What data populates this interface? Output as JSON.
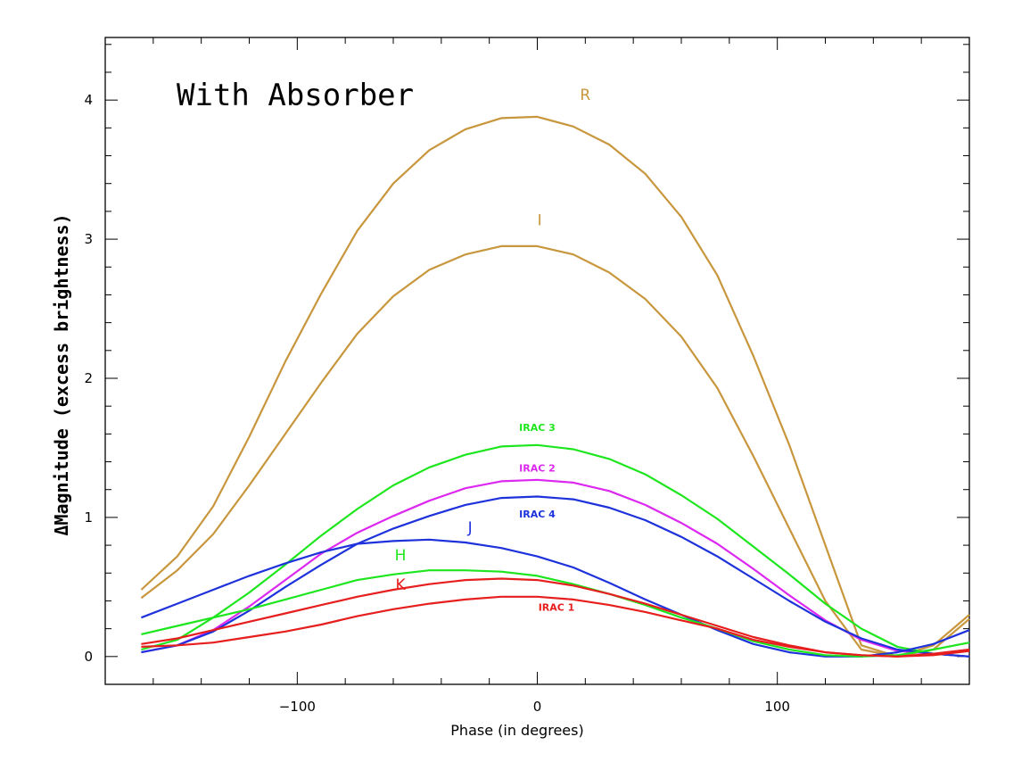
{
  "chart_data": {
    "type": "line",
    "title": "",
    "annotation": "With Absorber",
    "xlabel": "Phase (in degrees)",
    "ylabel": "ΔMagnitude (excess brightness)",
    "xlim": [
      -180,
      180
    ],
    "ylim": [
      -0.2,
      4.45
    ],
    "xticks": [
      -100,
      0,
      100
    ],
    "yticks": [
      0,
      1,
      2,
      3,
      4
    ],
    "grid": false,
    "legend": "none",
    "series": [
      {
        "name": "R",
        "color": "#c8963c",
        "label_at": [
          20,
          4.0
        ],
        "small": false,
        "x": [
          -165,
          -150,
          -135,
          -120,
          -105,
          -90,
          -75,
          -60,
          -45,
          -30,
          -15,
          0,
          15,
          30,
          45,
          60,
          75,
          90,
          105,
          120,
          135,
          150,
          165,
          180
        ],
        "y": [
          0.48,
          0.72,
          1.08,
          1.58,
          2.12,
          2.61,
          3.06,
          3.4,
          3.64,
          3.79,
          3.87,
          3.88,
          3.81,
          3.68,
          3.47,
          3.16,
          2.74,
          2.16,
          1.52,
          0.8,
          0.08,
          0.0,
          0.05,
          0.27
        ]
      },
      {
        "name": "I",
        "color": "#c8963c",
        "label_at": [
          1,
          3.1
        ],
        "small": false,
        "x": [
          -165,
          -150,
          -135,
          -120,
          -105,
          -90,
          -75,
          -60,
          -45,
          -30,
          -15,
          0,
          15,
          30,
          45,
          60,
          75,
          90,
          105,
          120,
          135,
          150,
          165,
          180
        ],
        "y": [
          0.42,
          0.62,
          0.88,
          1.23,
          1.6,
          1.97,
          2.32,
          2.59,
          2.78,
          2.89,
          2.95,
          2.95,
          2.89,
          2.76,
          2.57,
          2.3,
          1.93,
          1.44,
          0.92,
          0.4,
          0.05,
          0.0,
          0.08,
          0.3
        ]
      },
      {
        "name": "IRAC 3",
        "color": "#1ee61e",
        "label_at": [
          0,
          1.62
        ],
        "small": true,
        "x": [
          -165,
          -150,
          -135,
          -120,
          -105,
          -90,
          -75,
          -60,
          -45,
          -30,
          -15,
          0,
          15,
          30,
          45,
          60,
          75,
          90,
          105,
          120,
          135,
          150,
          165,
          180
        ],
        "y": [
          0.05,
          0.12,
          0.28,
          0.46,
          0.66,
          0.87,
          1.06,
          1.23,
          1.36,
          1.45,
          1.51,
          1.52,
          1.49,
          1.42,
          1.31,
          1.16,
          0.99,
          0.79,
          0.59,
          0.38,
          0.2,
          0.07,
          0.02,
          0.0
        ]
      },
      {
        "name": "IRAC 2",
        "color": "#dc28f0",
        "label_at": [
          0,
          1.33
        ],
        "small": true,
        "x": [
          -165,
          -150,
          -135,
          -120,
          -105,
          -90,
          -75,
          -60,
          -45,
          -30,
          -15,
          0,
          15,
          30,
          45,
          60,
          75,
          90,
          105,
          120,
          135,
          150,
          165,
          180
        ],
        "y": [
          0.03,
          0.08,
          0.19,
          0.36,
          0.55,
          0.74,
          0.89,
          1.01,
          1.12,
          1.21,
          1.26,
          1.27,
          1.25,
          1.19,
          1.09,
          0.96,
          0.81,
          0.63,
          0.44,
          0.26,
          0.12,
          0.04,
          0.02,
          0.0
        ]
      },
      {
        "name": "IRAC 4",
        "color": "#1e32dc",
        "label_at": [
          0,
          1.0
        ],
        "small": true,
        "x": [
          -165,
          -150,
          -135,
          -120,
          -105,
          -90,
          -75,
          -60,
          -45,
          -30,
          -15,
          0,
          15,
          30,
          45,
          60,
          75,
          90,
          105,
          120,
          135,
          150,
          165,
          180
        ],
        "y": [
          0.03,
          0.08,
          0.18,
          0.33,
          0.5,
          0.66,
          0.81,
          0.92,
          1.01,
          1.09,
          1.14,
          1.15,
          1.13,
          1.07,
          0.98,
          0.86,
          0.72,
          0.56,
          0.4,
          0.25,
          0.13,
          0.05,
          0.02,
          0.0
        ]
      },
      {
        "name": "J",
        "color": "#1e32dc",
        "label_at": [
          -28,
          0.89
        ],
        "small": false,
        "x": [
          -165,
          -150,
          -135,
          -120,
          -105,
          -90,
          -75,
          -60,
          -45,
          -30,
          -15,
          0,
          15,
          30,
          45,
          60,
          75,
          90,
          105,
          120,
          135,
          150,
          165,
          180
        ],
        "y": [
          0.28,
          0.38,
          0.48,
          0.58,
          0.67,
          0.75,
          0.81,
          0.83,
          0.84,
          0.82,
          0.78,
          0.72,
          0.64,
          0.53,
          0.41,
          0.3,
          0.19,
          0.09,
          0.03,
          0.0,
          0.0,
          0.03,
          0.09,
          0.19
        ]
      },
      {
        "name": "H",
        "color": "#1ee61e",
        "label_at": [
          -57,
          0.69
        ],
        "small": false,
        "x": [
          -165,
          -150,
          -135,
          -120,
          -105,
          -90,
          -75,
          -60,
          -45,
          -30,
          -15,
          0,
          15,
          30,
          45,
          60,
          75,
          90,
          105,
          120,
          135,
          150,
          165,
          180
        ],
        "y": [
          0.16,
          0.22,
          0.28,
          0.34,
          0.41,
          0.48,
          0.55,
          0.59,
          0.62,
          0.62,
          0.61,
          0.58,
          0.52,
          0.45,
          0.37,
          0.28,
          0.2,
          0.11,
          0.05,
          0.01,
          0.0,
          0.01,
          0.05,
          0.1
        ]
      },
      {
        "name": "K",
        "color": "#e61e1e",
        "label_at": [
          -57,
          0.48
        ],
        "small": false,
        "x": [
          -165,
          -150,
          -135,
          -120,
          -105,
          -90,
          -75,
          -60,
          -45,
          -30,
          -15,
          0,
          15,
          30,
          45,
          60,
          75,
          90,
          105,
          120,
          135,
          150,
          165,
          180
        ],
        "y": [
          0.09,
          0.13,
          0.19,
          0.25,
          0.31,
          0.37,
          0.43,
          0.48,
          0.52,
          0.55,
          0.56,
          0.55,
          0.51,
          0.45,
          0.38,
          0.3,
          0.22,
          0.14,
          0.08,
          0.03,
          0.01,
          0.0,
          0.01,
          0.04
        ]
      },
      {
        "name": "IRAC 1",
        "color": "#e61e1e",
        "label_at": [
          8,
          0.33
        ],
        "small": true,
        "x": [
          -165,
          -150,
          -135,
          -120,
          -105,
          -90,
          -75,
          -60,
          -45,
          -30,
          -15,
          0,
          15,
          30,
          45,
          60,
          75,
          90,
          105,
          120,
          135,
          150,
          165,
          180
        ],
        "y": [
          0.07,
          0.08,
          0.1,
          0.14,
          0.18,
          0.23,
          0.29,
          0.34,
          0.38,
          0.41,
          0.43,
          0.43,
          0.41,
          0.37,
          0.32,
          0.26,
          0.2,
          0.12,
          0.07,
          0.03,
          0.01,
          0.0,
          0.02,
          0.05
        ]
      }
    ]
  }
}
